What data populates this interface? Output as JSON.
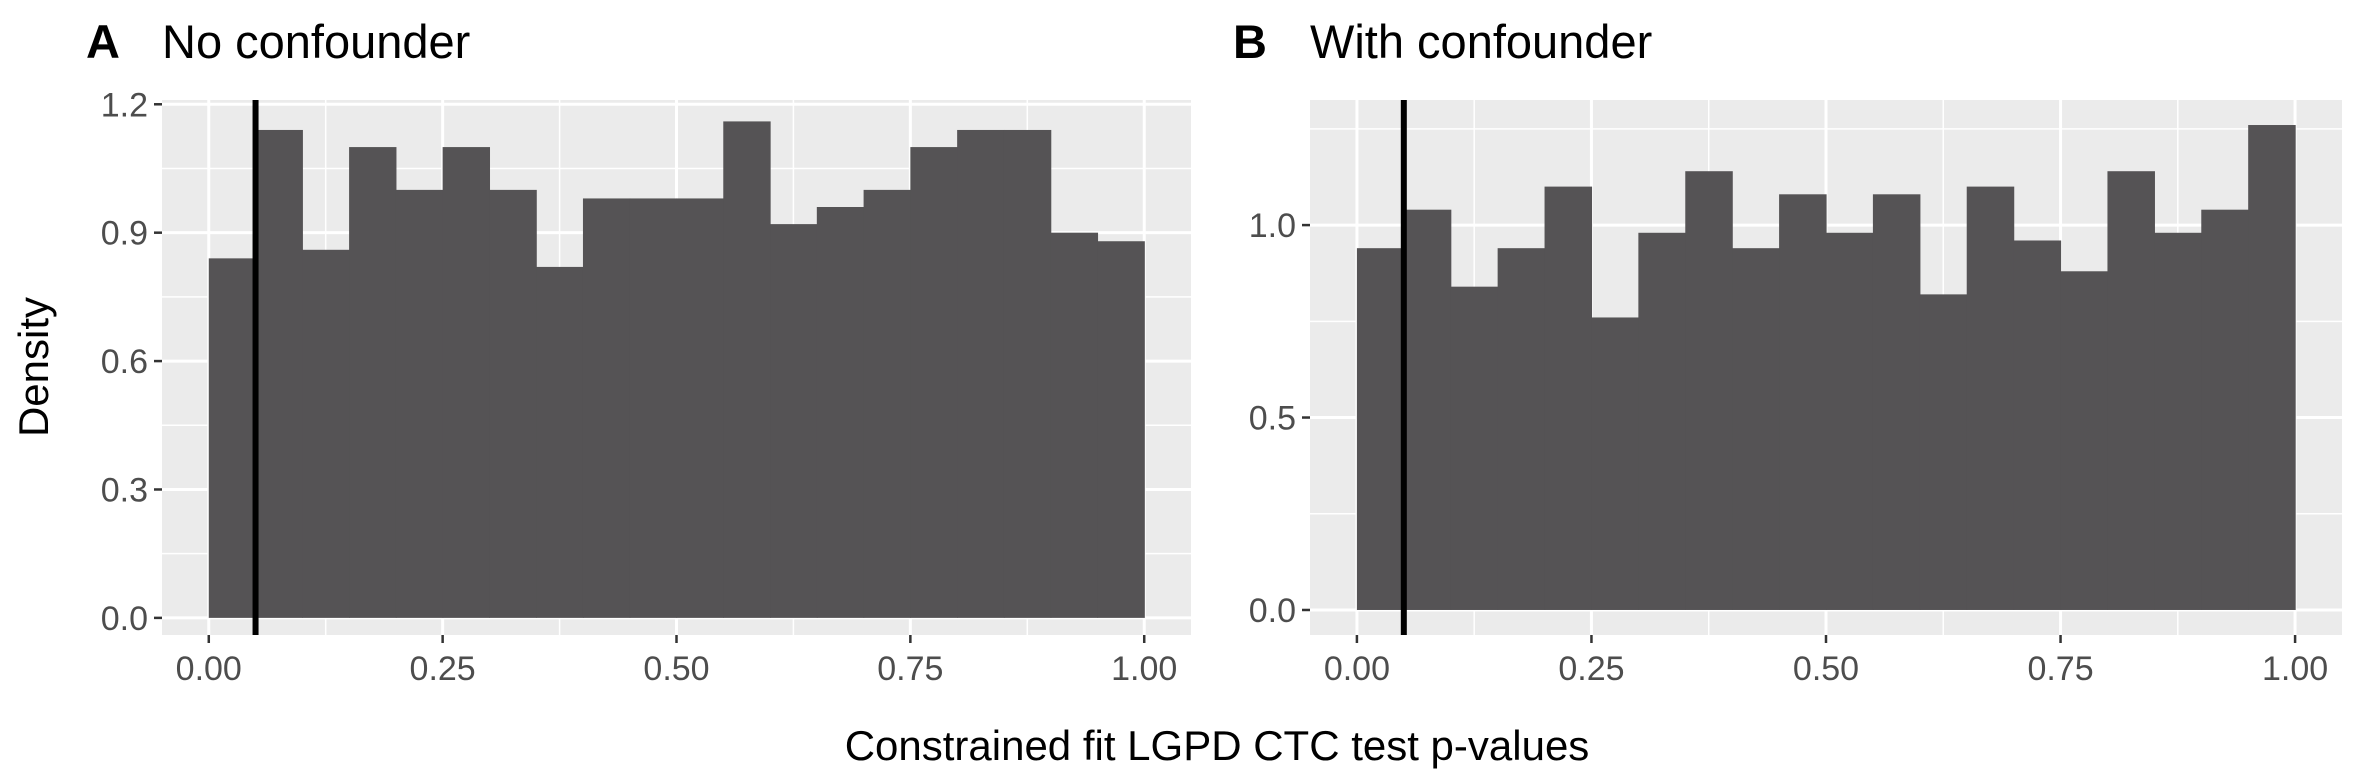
{
  "figure": {
    "ylabel": "Density",
    "xlabel": "Constrained fit LGPD CTC test p-values"
  },
  "chart_data": [
    {
      "type": "bar",
      "panel_tag": "A",
      "title": "No confounder",
      "xlabel": "Constrained fit LGPD CTC test p-values",
      "ylabel": "Density",
      "bin_width": 0.05,
      "bin_starts": [
        0.0,
        0.05,
        0.1,
        0.15,
        0.2,
        0.25,
        0.3,
        0.35,
        0.4,
        0.45,
        0.5,
        0.55,
        0.6,
        0.65,
        0.7,
        0.75,
        0.8,
        0.85,
        0.9,
        0.95
      ],
      "values": [
        0.84,
        1.14,
        0.86,
        1.1,
        1.0,
        1.1,
        1.0,
        0.82,
        0.98,
        0.98,
        0.98,
        1.16,
        0.92,
        0.96,
        1.0,
        1.1,
        1.14,
        1.14,
        0.9,
        0.88
      ],
      "xlim": [
        -0.05,
        1.05
      ],
      "ylim": [
        -0.04,
        1.21
      ],
      "xticks": [
        0.0,
        0.25,
        0.5,
        0.75,
        1.0
      ],
      "xtick_labels": [
        "0.00",
        "0.25",
        "0.50",
        "0.75",
        "1.00"
      ],
      "yticks": [
        0.0,
        0.3,
        0.6,
        0.9,
        1.2
      ],
      "ytick_labels": [
        "0.0",
        "0.3",
        "0.6",
        "0.9",
        "1.2"
      ],
      "vline_x": 0.05,
      "grid": true,
      "bar_color": "#555355",
      "panel_bg": "#ebebeb",
      "vline_color": "#000000"
    },
    {
      "type": "bar",
      "panel_tag": "B",
      "title": "With confounder",
      "xlabel": "Constrained fit LGPD CTC test p-values",
      "ylabel": "Density",
      "bin_width": 0.05,
      "bin_starts": [
        0.0,
        0.05,
        0.1,
        0.15,
        0.2,
        0.25,
        0.3,
        0.35,
        0.4,
        0.45,
        0.5,
        0.55,
        0.6,
        0.65,
        0.7,
        0.75,
        0.8,
        0.85,
        0.9,
        0.95
      ],
      "values": [
        0.94,
        1.04,
        0.84,
        0.94,
        1.1,
        0.76,
        0.98,
        1.14,
        0.94,
        1.08,
        0.98,
        1.08,
        0.82,
        1.1,
        0.96,
        0.88,
        1.14,
        0.98,
        1.04,
        1.26
      ],
      "xlim": [
        -0.05,
        1.05
      ],
      "ylim": [
        -0.065,
        1.325
      ],
      "xticks": [
        0.0,
        0.25,
        0.5,
        0.75,
        1.0
      ],
      "xtick_labels": [
        "0.00",
        "0.25",
        "0.50",
        "0.75",
        "1.00"
      ],
      "yticks": [
        0.0,
        0.5,
        1.0
      ],
      "ytick_labels": [
        "0.0",
        "0.5",
        "1.0"
      ],
      "vline_x": 0.05,
      "grid": true,
      "bar_color": "#555355",
      "panel_bg": "#ebebeb",
      "vline_color": "#000000"
    }
  ]
}
